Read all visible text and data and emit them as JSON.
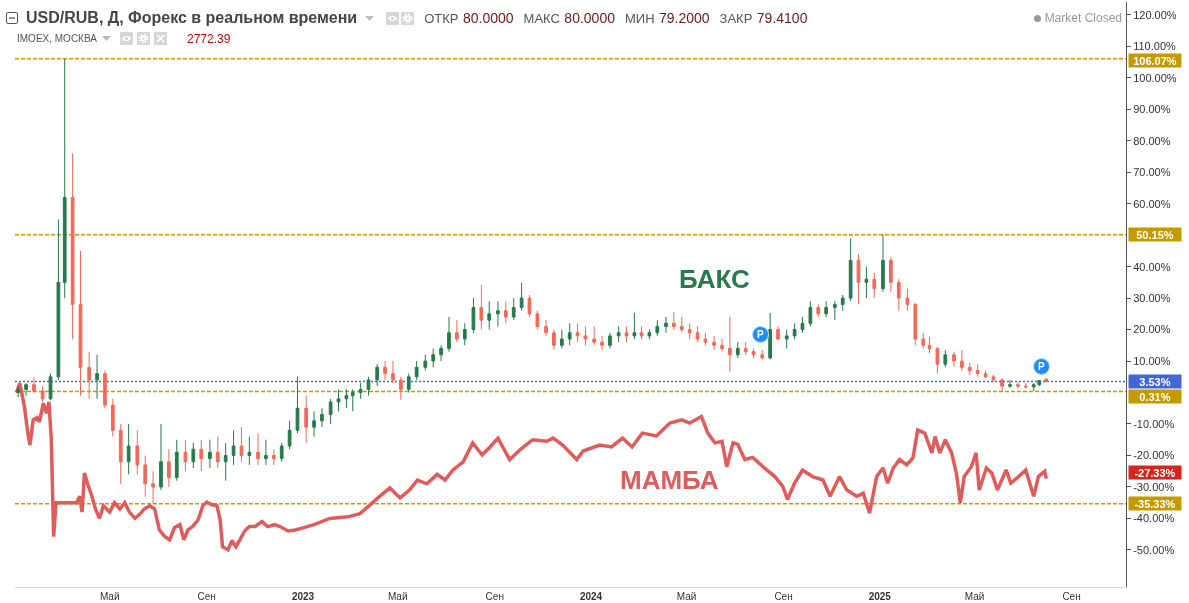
{
  "chart_data": {
    "type": "candlestick",
    "title": "USD/RUB, Д, Форекс в реальном времени",
    "subtitle": "IMOEX, МОСКВА",
    "annotations": [
      "ОТКР 80.0000",
      "МАКС 80.0000",
      "МИН 79.2000",
      "ЗАКР 79.4100",
      "2772.39",
      "Market Closed",
      "-27.33%",
      {
        "text": "P",
        "x": "2024-08-03",
        "y": 18.3
      },
      {
        "text": "P",
        "x": "2025-07-25",
        "y": 8.2
      }
    ],
    "xlim": [
      "2022-01-01",
      "2025-11-09"
    ],
    "xticks": [
      {
        "value": "2022-05-01",
        "label": "Май"
      },
      {
        "value": "2022-09-01",
        "label": "Сен"
      },
      {
        "value": "2023-01-01",
        "label": "2023"
      },
      {
        "value": "2023-05-01",
        "label": "Май"
      },
      {
        "value": "2023-09-01",
        "label": "Сен"
      },
      {
        "value": "2024-01-01",
        "label": "2024"
      },
      {
        "value": "2024-05-01",
        "label": "Май"
      },
      {
        "value": "2024-09-01",
        "label": "Сен"
      },
      {
        "value": "2025-01-01",
        "label": "2025"
      },
      {
        "value": "2025-05-01",
        "label": "Май"
      },
      {
        "value": "2025-09-01",
        "label": "Сен"
      }
    ],
    "ylim": [
      -61.8,
      124.1
    ],
    "yticks": [
      {
        "value": 120,
        "label": "120.00%"
      },
      {
        "value": 110,
        "label": "110.00%"
      },
      {
        "value": 100,
        "label": "100.00%"
      },
      {
        "value": 90,
        "label": "90.00%"
      },
      {
        "value": 80,
        "label": "80.00%"
      },
      {
        "value": 70,
        "label": "70.00%"
      },
      {
        "value": 60,
        "label": "60.00%"
      },
      {
        "value": 40,
        "label": "40.00%"
      },
      {
        "value": 30,
        "label": "30.00%"
      },
      {
        "value": 20,
        "label": "20.00%"
      },
      {
        "value": 10,
        "label": "10.00%"
      },
      {
        "value": -10,
        "label": "-10.00%"
      },
      {
        "value": -20,
        "label": "-20.00%"
      },
      {
        "value": -30,
        "label": "-30.00%"
      },
      {
        "value": -40,
        "label": "-40.00%"
      },
      {
        "value": -50,
        "label": "-50.00%"
      }
    ],
    "ref_lines": [
      {
        "axis": "y",
        "value": 106.07,
        "label": "106.07%",
        "color": "#c49a00",
        "line_style": "dashed"
      },
      {
        "axis": "y",
        "value": 50.15,
        "label": "50.15%",
        "color": "#c49a00",
        "line_style": "dashed"
      },
      {
        "axis": "y",
        "value": 3.53,
        "label": "3.53%",
        "color": "#4266d6",
        "line_style": "dotted"
      },
      {
        "axis": "y",
        "value": 0.31,
        "label": "0.31%",
        "color": "#c49a00",
        "line_style": "dashed"
      },
      {
        "axis": "y",
        "value": -35.33,
        "label": "-35.33%",
        "color": "#c49a00",
        "line_style": "dashed"
      }
    ],
    "series": [
      {
        "name": "БАКС",
        "color": "#267a4b",
        "colors": [
          "#267a4b",
          "#267a4b",
          "#f0695a",
          "#f0695a",
          "#267a4b",
          "#267a4b",
          "#267a4b",
          "#f0695a",
          "#f0695a",
          "#f0695a",
          "#267a4b",
          "#f0695a",
          "#f0695a",
          "#f0695a",
          "#267a4b",
          "#f0695a",
          "#f0695a",
          "#f0695a",
          "#267a4b",
          "#f0695a",
          "#267a4b",
          "#f0695a",
          "#267a4b",
          "#f0695a",
          "#267a4b",
          "#f0695a",
          "#267a4b",
          "#267a4b",
          "#f0695a",
          "#267a4b",
          "#f0695a",
          "#267a4b",
          "#f0695a",
          "#267a4b",
          "#267a4b",
          "#267a4b",
          "#f0695a",
          "#267a4b",
          "#267a4b",
          "#267a4b",
          "#267a4b",
          "#267a4b",
          "#267a4b",
          "#267a4b",
          "#267a4b",
          "#267a4b",
          "#f0695a",
          "#f0695a",
          "#f0695a",
          "#267a4b",
          "#267a4b",
          "#267a4b",
          "#267a4b",
          "#267a4b",
          "#267a4b",
          "#f0695a",
          "#267a4b",
          "#267a4b",
          "#f0695a",
          "#267a4b",
          "#267a4b",
          "#f0695a",
          "#267a4b",
          "#267a4b",
          "#f0695a",
          "#f0695a",
          "#f0695a",
          "#f0695a",
          "#267a4b",
          "#267a4b",
          "#f0695a",
          "#f0695a",
          "#f0695a",
          "#f0695a",
          "#267a4b",
          "#267a4b",
          "#f0695a",
          "#267a4b",
          "#f0695a",
          "#267a4b",
          "#267a4b",
          "#267a4b",
          "#f0695a",
          "#f0695a",
          "#f0695a",
          "#f0695a",
          "#f0695a",
          "#f0695a",
          "#f0695a",
          "#f0695a",
          "#267a4b",
          "#f0695a",
          "#f0695a",
          "#f0695a",
          "#267a4b",
          "#f0695a",
          "#267a4b",
          "#267a4b",
          "#267a4b",
          "#267a4b",
          "#f0695a",
          "#267a4b",
          "#267a4b",
          "#267a4b",
          "#267a4b",
          "#f0695a",
          "#267a4b",
          "#f0695a",
          "#267a4b",
          "#f0695a",
          "#f0695a",
          "#f0695a",
          "#f0695a",
          "#f0695a",
          "#f0695a",
          "#f0695a",
          "#267a4b",
          "#f0695a",
          "#f0695a",
          "#f0695a",
          "#f0695a",
          "#f0695a",
          "#f0695a",
          "#f0695a",
          "#267a4b",
          "#f0695a",
          "#f0695a",
          "#267a4b",
          "#267a4b",
          "#f0695a"
        ],
        "x": [
          "2022-01-05",
          "2022-01-15",
          "2022-01-25",
          "2022-02-05",
          "2022-02-15",
          "2022-02-25",
          "2022-03-05",
          "2022-03-15",
          "2022-03-25",
          "2022-04-05",
          "2022-04-15",
          "2022-04-25",
          "2022-05-05",
          "2022-05-15",
          "2022-05-25",
          "2022-06-05",
          "2022-06-15",
          "2022-06-25",
          "2022-07-05",
          "2022-07-15",
          "2022-07-25",
          "2022-08-05",
          "2022-08-15",
          "2022-08-25",
          "2022-09-05",
          "2022-09-15",
          "2022-09-25",
          "2022-10-05",
          "2022-10-15",
          "2022-10-25",
          "2022-11-05",
          "2022-11-15",
          "2022-11-25",
          "2022-12-05",
          "2022-12-15",
          "2022-12-25",
          "2023-01-05",
          "2023-01-15",
          "2023-01-25",
          "2023-02-05",
          "2023-02-15",
          "2023-02-25",
          "2023-03-05",
          "2023-03-15",
          "2023-03-25",
          "2023-04-05",
          "2023-04-15",
          "2023-04-25",
          "2023-05-05",
          "2023-05-15",
          "2023-05-25",
          "2023-06-05",
          "2023-06-15",
          "2023-06-25",
          "2023-07-05",
          "2023-07-15",
          "2023-07-25",
          "2023-08-05",
          "2023-08-15",
          "2023-08-25",
          "2023-09-05",
          "2023-09-15",
          "2023-09-25",
          "2023-10-05",
          "2023-10-15",
          "2023-10-25",
          "2023-11-05",
          "2023-11-15",
          "2023-11-25",
          "2023-12-05",
          "2023-12-15",
          "2023-12-25",
          "2024-01-05",
          "2024-01-15",
          "2024-01-25",
          "2024-02-05",
          "2024-02-15",
          "2024-02-25",
          "2024-03-05",
          "2024-03-15",
          "2024-03-25",
          "2024-04-05",
          "2024-04-15",
          "2024-04-25",
          "2024-05-05",
          "2024-05-15",
          "2024-05-25",
          "2024-06-05",
          "2024-06-15",
          "2024-06-25",
          "2024-07-05",
          "2024-07-15",
          "2024-07-25",
          "2024-08-05",
          "2024-08-15",
          "2024-08-25",
          "2024-09-05",
          "2024-09-15",
          "2024-09-25",
          "2024-10-05",
          "2024-10-15",
          "2024-10-25",
          "2024-11-05",
          "2024-11-15",
          "2024-11-25",
          "2024-12-05",
          "2024-12-15",
          "2024-12-25",
          "2025-01-05",
          "2025-01-15",
          "2025-01-25",
          "2025-02-05",
          "2025-02-15",
          "2025-02-25",
          "2025-03-05",
          "2025-03-15",
          "2025-03-25",
          "2025-04-05",
          "2025-04-15",
          "2025-04-25",
          "2025-05-05",
          "2025-05-15",
          "2025-05-25",
          "2025-06-05",
          "2025-06-15",
          "2025-06-25",
          "2025-07-05",
          "2025-07-15",
          "2025-07-22",
          "2025-07-31"
        ],
        "ohlc": [
          [
            0,
            2,
            -1.5,
            1
          ],
          [
            1,
            3,
            -1,
            2.5
          ],
          [
            2.5,
            5,
            0,
            0.5
          ],
          [
            0.5,
            2,
            -3,
            -2
          ],
          [
            -2,
            6,
            -2.5,
            5
          ],
          [
            5,
            55,
            4,
            35
          ],
          [
            35,
            106.07,
            30,
            62
          ],
          [
            62,
            76,
            17,
            28
          ],
          [
            28,
            45,
            -1,
            8
          ],
          [
            8,
            13,
            -2,
            4
          ],
          [
            4,
            12,
            -2,
            6
          ],
          [
            6,
            7,
            -5,
            -4
          ],
          [
            -4,
            -2,
            -14,
            -12
          ],
          [
            -12,
            -10,
            -29,
            -22
          ],
          [
            -22,
            -10,
            -26,
            -17
          ],
          [
            -17,
            -12,
            -26,
            -23
          ],
          [
            -23,
            -20,
            -33,
            -29
          ],
          [
            -29,
            -25,
            -35.3,
            -30
          ],
          [
            -30,
            -10,
            -31,
            -22
          ],
          [
            -22,
            -18,
            -30,
            -27
          ],
          [
            -27,
            -15,
            -28,
            -19
          ],
          [
            -19,
            -15,
            -25,
            -22
          ],
          [
            -22,
            -16,
            -24,
            -18
          ],
          [
            -18,
            -15,
            -25,
            -21
          ],
          [
            -21,
            -15,
            -24,
            -19
          ],
          [
            -19,
            -14,
            -24,
            -22
          ],
          [
            -22,
            -16,
            -28,
            -20
          ],
          [
            -20,
            -12,
            -23,
            -17
          ],
          [
            -17,
            -11,
            -22,
            -20
          ],
          [
            -20,
            -14,
            -23,
            -19
          ],
          [
            -19,
            -13,
            -23,
            -21
          ],
          [
            -21,
            -15,
            -23,
            -20
          ],
          [
            -20,
            -18,
            -23,
            -21
          ],
          [
            -21,
            -16,
            -22,
            -17
          ],
          [
            -17,
            -9,
            -18,
            -12
          ],
          [
            -12,
            5,
            -13,
            -5
          ],
          [
            -5,
            -1,
            -16,
            -11
          ],
          [
            -11,
            -6,
            -14,
            -9
          ],
          [
            -9,
            -5,
            -11,
            -7
          ],
          [
            -7,
            -2,
            -10,
            -3
          ],
          [
            -3,
            1,
            -6,
            -2
          ],
          [
            -2,
            1,
            -5,
            -1
          ],
          [
            -1,
            1,
            -6,
            0
          ],
          [
            0,
            3,
            -2,
            1
          ],
          [
            1,
            5,
            -1,
            4
          ],
          [
            4,
            9,
            2,
            8
          ],
          [
            8,
            10,
            4,
            6
          ],
          [
            6,
            10,
            3,
            4
          ],
          [
            4,
            5,
            -2.3,
            1
          ],
          [
            1,
            6,
            0,
            5
          ],
          [
            5,
            10,
            4,
            8
          ],
          [
            8,
            12,
            7,
            10
          ],
          [
            10,
            14,
            8,
            12
          ],
          [
            12,
            15,
            10,
            14
          ],
          [
            14,
            24,
            13,
            19
          ],
          [
            19,
            23,
            16,
            17
          ],
          [
            17,
            22,
            15,
            20
          ],
          [
            20,
            30,
            19,
            27
          ],
          [
            27,
            34.2,
            20,
            23
          ],
          [
            23,
            29,
            20,
            25
          ],
          [
            25,
            29,
            21,
            26
          ],
          [
            26,
            29,
            22,
            24
          ],
          [
            24,
            30,
            23,
            27
          ],
          [
            27,
            34.8,
            26,
            30
          ],
          [
            30,
            31,
            24,
            25
          ],
          [
            25,
            26,
            20,
            21
          ],
          [
            21,
            23,
            18,
            19
          ],
          [
            19,
            20,
            13.6,
            15
          ],
          [
            15,
            20,
            14,
            17
          ],
          [
            17,
            22,
            15,
            19
          ],
          [
            19,
            22,
            16,
            18
          ],
          [
            18,
            21,
            15,
            17
          ],
          [
            17,
            21,
            15,
            16
          ],
          [
            16,
            18,
            13.5,
            15
          ],
          [
            15,
            19,
            14,
            18
          ],
          [
            18,
            21,
            16,
            19
          ],
          [
            19,
            21,
            16,
            18
          ],
          [
            18,
            25.3,
            17,
            19
          ],
          [
            19,
            21,
            17,
            18
          ],
          [
            18,
            20,
            17,
            19
          ],
          [
            19,
            23,
            18,
            21
          ],
          [
            21,
            24,
            19,
            22
          ],
          [
            22,
            25.6,
            20,
            21
          ],
          [
            21,
            24,
            19,
            20
          ],
          [
            20,
            22,
            17,
            19
          ],
          [
            19,
            21,
            16,
            17
          ],
          [
            17,
            19,
            15,
            16
          ],
          [
            16,
            18,
            13.5,
            15
          ],
          [
            15,
            17,
            13,
            14
          ],
          [
            14,
            24,
            6.6,
            12
          ],
          [
            12,
            16,
            11,
            14
          ],
          [
            14,
            16,
            12,
            13
          ],
          [
            13,
            14,
            11,
            12
          ],
          [
            12,
            13.5,
            10.4,
            11
          ],
          [
            11,
            25.3,
            10.5,
            20
          ],
          [
            20,
            21,
            16.7,
            17
          ],
          [
            17,
            20,
            14,
            18
          ],
          [
            18,
            22,
            17,
            20
          ],
          [
            20,
            24,
            19,
            22
          ],
          [
            22,
            29,
            21,
            27
          ],
          [
            27,
            28,
            24,
            25
          ],
          [
            25,
            29,
            24,
            27
          ],
          [
            27,
            29,
            23,
            28
          ],
          [
            28,
            31,
            26,
            30
          ],
          [
            30,
            49,
            29,
            42
          ],
          [
            42,
            44,
            28,
            35
          ],
          [
            35,
            40,
            30,
            36
          ],
          [
            36,
            38,
            30,
            33
          ],
          [
            33,
            50.15,
            32,
            42
          ],
          [
            42,
            43,
            32,
            35
          ],
          [
            35,
            36,
            26,
            30
          ],
          [
            30,
            33,
            26,
            28
          ],
          [
            28,
            28.5,
            15,
            17
          ],
          [
            17,
            19,
            14,
            15
          ],
          [
            15,
            17.7,
            12.5,
            14
          ],
          [
            14,
            14.5,
            6,
            9
          ],
          [
            9,
            13.5,
            8,
            12
          ],
          [
            12,
            13,
            8.2,
            10
          ],
          [
            10,
            13.5,
            7,
            8
          ],
          [
            8,
            9.4,
            5.5,
            7
          ],
          [
            7,
            9,
            5,
            6
          ],
          [
            6,
            7,
            4.5,
            5
          ],
          [
            5,
            5.6,
            3.4,
            4
          ],
          [
            4,
            4.5,
            0.31,
            2
          ],
          [
            2,
            4,
            1.5,
            2.5
          ],
          [
            2.5,
            3.3,
            1.4,
            2
          ],
          [
            2,
            3,
            1.2,
            1.8
          ],
          [
            1.8,
            3,
            0.5,
            2.5
          ],
          [
            2.5,
            4,
            2,
            3.8
          ],
          [
            4.3,
            4.3,
            3.26,
            3.53
          ]
        ]
      },
      {
        "name": "МАМБА",
        "type": "line",
        "color": "#e05c5c",
        "x": [
          "2022-01-03",
          "2022-01-07",
          "2022-01-13",
          "2022-01-17",
          "2022-01-20",
          "2022-01-24",
          "2022-01-29",
          "2022-02-01",
          "2022-02-06",
          "2022-02-10",
          "2022-02-13",
          "2022-02-16",
          "2022-02-19",
          "2022-02-22",
          "2022-03-20",
          "2022-03-24",
          "2022-03-27",
          "2022-03-30",
          "2022-04-03",
          "2022-04-08",
          "2022-04-13",
          "2022-04-18",
          "2022-04-23",
          "2022-05-01",
          "2022-05-07",
          "2022-05-14",
          "2022-05-20",
          "2022-05-26",
          "2022-06-02",
          "2022-06-08",
          "2022-06-14",
          "2022-06-21",
          "2022-06-27",
          "2022-07-03",
          "2022-07-10",
          "2022-07-16",
          "2022-07-22",
          "2022-07-29",
          "2022-08-03",
          "2022-08-08",
          "2022-08-14",
          "2022-08-21",
          "2022-08-27",
          "2022-09-01",
          "2022-09-07",
          "2022-09-14",
          "2022-09-18",
          "2022-09-21",
          "2022-09-28",
          "2022-10-03",
          "2022-10-08",
          "2022-10-13",
          "2022-10-19",
          "2022-10-25",
          "2022-11-01",
          "2022-11-10",
          "2022-11-17",
          "2022-11-26",
          "2022-12-03",
          "2022-12-13",
          "2022-12-22",
          "2023-01-01",
          "2023-01-15",
          "2023-02-04",
          "2023-02-27",
          "2023-03-14",
          "2023-03-27",
          "2023-04-08",
          "2023-04-21",
          "2023-05-04",
          "2023-05-16",
          "2023-05-26",
          "2023-06-07",
          "2023-06-20",
          "2023-06-30",
          "2023-07-10",
          "2023-07-23",
          "2023-08-04",
          "2023-08-16",
          "2023-08-26",
          "2023-09-05",
          "2023-09-20",
          "2023-10-03",
          "2023-10-19",
          "2023-11-06",
          "2023-11-14",
          "2023-11-26",
          "2023-12-14",
          "2023-12-22",
          "2024-01-12",
          "2024-01-27",
          "2024-02-10",
          "2024-02-22",
          "2024-03-06",
          "2024-03-24",
          "2024-04-10",
          "2024-04-25",
          "2024-05-05",
          "2024-05-20",
          "2024-05-28",
          "2024-06-06",
          "2024-06-15",
          "2024-06-21",
          "2024-06-29",
          "2024-07-05",
          "2024-07-14",
          "2024-07-24",
          "2024-08-06",
          "2024-08-21",
          "2024-08-31",
          "2024-09-06",
          "2024-09-15",
          "2024-09-25",
          "2024-10-08",
          "2024-10-21",
          "2024-10-30",
          "2024-11-11",
          "2024-11-20",
          "2024-12-03",
          "2024-12-11",
          "2024-12-19",
          "2024-12-28",
          "2025-01-05",
          "2025-01-11",
          "2025-01-18",
          "2025-01-26",
          "2025-02-04",
          "2025-02-12",
          "2025-02-18",
          "2025-02-27",
          "2025-03-08",
          "2025-03-12",
          "2025-03-18",
          "2025-03-25",
          "2025-04-02",
          "2025-04-08",
          "2025-04-13",
          "2025-04-18",
          "2025-04-27",
          "2025-05-03",
          "2025-05-07",
          "2025-05-16",
          "2025-05-23",
          "2025-05-30",
          "2025-06-10",
          "2025-06-16",
          "2025-06-26",
          "2025-07-05",
          "2025-07-15",
          "2025-07-21",
          "2025-07-29",
          "2025-07-31"
        ],
        "values": [
          0,
          3,
          -4.5,
          -12.5,
          -16.7,
          -8.7,
          -8,
          -9.3,
          -3.4,
          -6.6,
          -3,
          -15,
          -45.8,
          -35,
          -35,
          -33,
          -38,
          -25.6,
          -29,
          -32.6,
          -37,
          -40,
          -36,
          -38,
          -35,
          -37,
          -35,
          -38,
          -40,
          -38.7,
          -37,
          -36,
          -37,
          -43.7,
          -45.8,
          -46.8,
          -43,
          -42,
          -46.8,
          -43.7,
          -42.6,
          -40.5,
          -36,
          -34.8,
          -35.6,
          -36,
          -40.5,
          -49,
          -50,
          -47,
          -49,
          -46.8,
          -44,
          -42.6,
          -42.6,
          -41,
          -42.6,
          -42,
          -42.6,
          -44,
          -43.7,
          -43,
          -42,
          -40,
          -39.5,
          -38.5,
          -35.7,
          -33,
          -30.3,
          -33.5,
          -31,
          -27.8,
          -29,
          -26,
          -27.8,
          -24.6,
          -22,
          -16,
          -19.8,
          -17.3,
          -14.5,
          -21.3,
          -18.2,
          -15,
          -15.5,
          -14.5,
          -16.7,
          -21.3,
          -18.6,
          -16.7,
          -17.3,
          -14.5,
          -17.3,
          -12.9,
          -13.8,
          -9.7,
          -8.7,
          -9.7,
          -7.6,
          -12.9,
          -16,
          -15.5,
          -23.6,
          -16,
          -16.5,
          -21.3,
          -20.6,
          -23.6,
          -26.7,
          -29.8,
          -34,
          -28.8,
          -24.7,
          -26.7,
          -27.8,
          -33,
          -26.7,
          -30.9,
          -33,
          -32,
          -38.3,
          -26.7,
          -24,
          -28.8,
          -24,
          -21.3,
          -23,
          -20.8,
          -11.9,
          -12.9,
          -19.2,
          -14,
          -19.2,
          -15,
          -19.2,
          -25.6,
          -35,
          -26.7,
          -23.6,
          -19.2,
          -31,
          -24,
          -25.6,
          -31,
          -24.6,
          -28.8,
          -26.7,
          -24.6,
          -33,
          -26.7,
          -25,
          -27.33
        ]
      }
    ]
  }
}
